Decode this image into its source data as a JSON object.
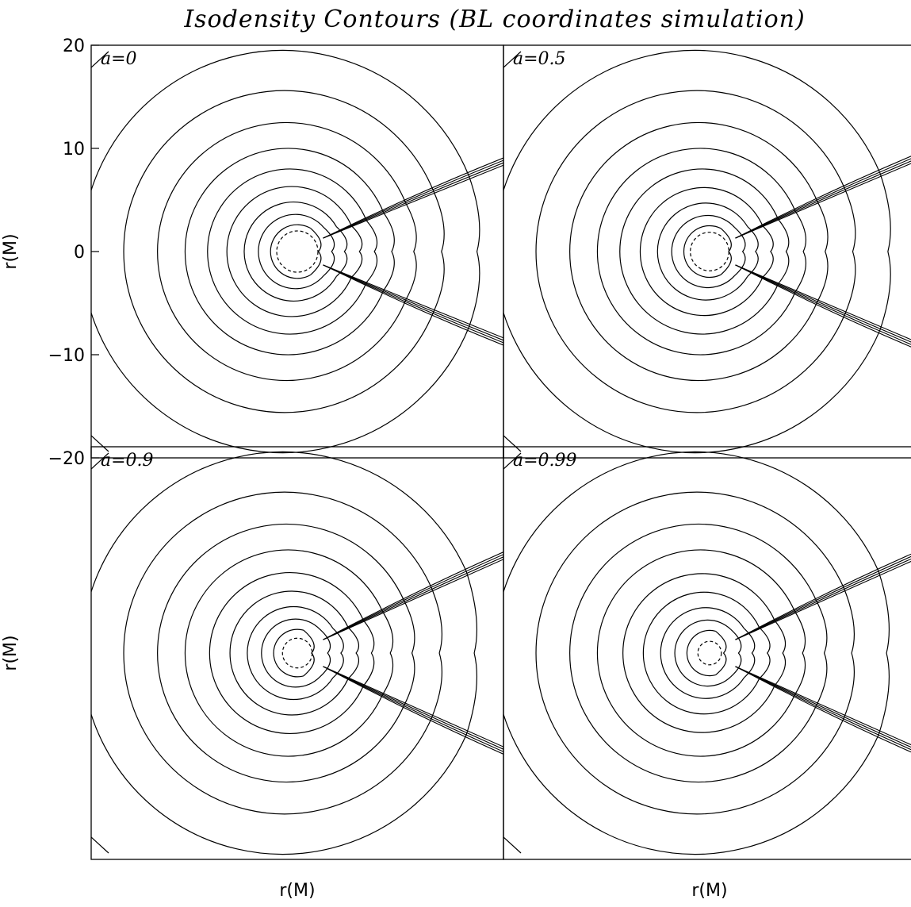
{
  "figure": {
    "title": "Isodensity Contours (BL coordinates simulation)"
  },
  "chart_data": [
    {
      "type": "contour",
      "panel_label": "a=0",
      "spin": 0,
      "xlabel": "r(M)",
      "ylabel": "r(M)",
      "xlim": [
        -20,
        20
      ],
      "ylim": [
        -20,
        20
      ],
      "yticks": [
        {
          "value": 20,
          "label": "20"
        },
        {
          "value": 10,
          "label": "10"
        },
        {
          "value": 0,
          "label": "0"
        },
        {
          "value": -10,
          "label": "−10"
        },
        {
          "value": -20,
          "label": "−20"
        }
      ],
      "contour_radii": [
        2.6,
        3.6,
        4.8,
        6.3,
        8.0,
        10.0,
        12.5,
        15.6,
        19.5
      ],
      "horizon_radius": 2.0,
      "shock_opening_deg": 22
    },
    {
      "type": "contour",
      "panel_label": "a=0.5",
      "spin": 0.5,
      "xlabel": "",
      "ylabel": "",
      "xlim": [
        -20,
        20
      ],
      "ylim": [
        -20,
        20
      ],
      "contour_radii": [
        2.5,
        3.5,
        4.7,
        6.2,
        8.0,
        10.0,
        12.5,
        15.6,
        19.5
      ],
      "horizon_radius": 1.87,
      "shock_opening_deg": 23
    },
    {
      "type": "contour",
      "panel_label": "a=0.9",
      "spin": 0.9,
      "xlabel": "r(M)",
      "ylabel": "r(M)",
      "xlim": [
        -20,
        20
      ],
      "ylim": [
        -20,
        20
      ],
      "contour_radii": [
        2.3,
        3.3,
        4.5,
        6.0,
        7.8,
        10.0,
        12.5,
        15.6,
        19.5
      ],
      "horizon_radius": 1.44,
      "shock_opening_deg": 24
    },
    {
      "type": "contour",
      "panel_label": "a=0.99",
      "spin": 0.99,
      "xlabel": "r(M)",
      "ylabel": "",
      "xlim": [
        -20,
        20
      ],
      "ylim": [
        -20,
        20
      ],
      "contour_radii": [
        2.2,
        3.2,
        4.4,
        5.9,
        7.7,
        10.0,
        12.5,
        15.6,
        19.5
      ],
      "horizon_radius": 1.14,
      "shock_opening_deg": 24
    }
  ]
}
